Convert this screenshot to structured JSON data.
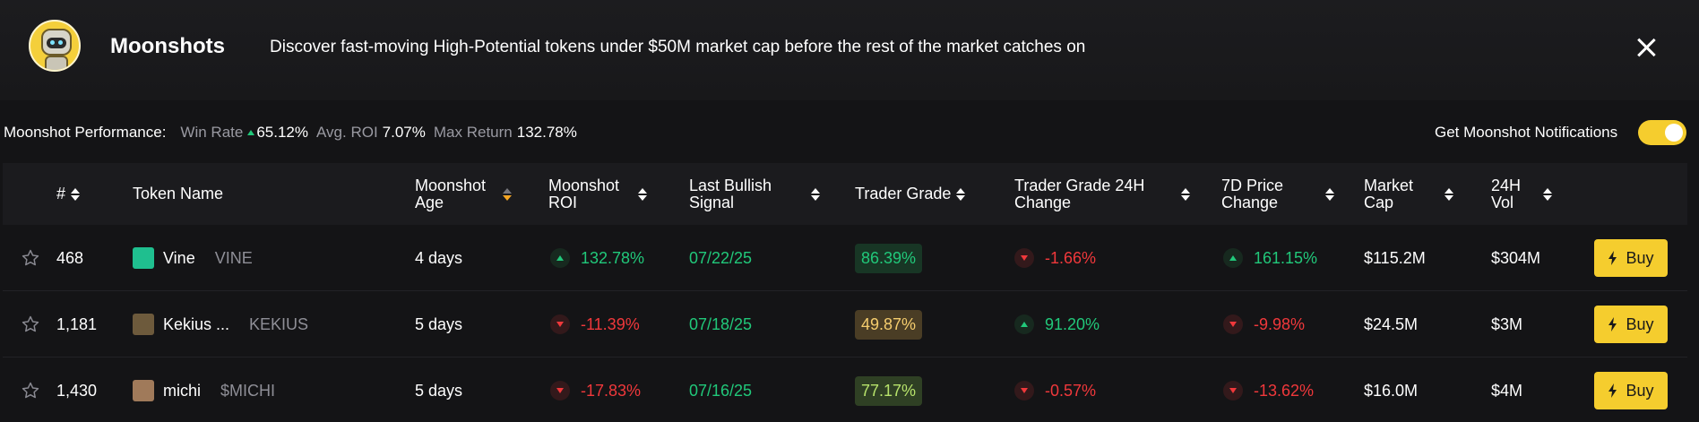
{
  "banner": {
    "title": "Moonshots",
    "tagline": "Discover fast-moving High-Potential tokens under $50M market cap before the rest of the market catches on"
  },
  "performance": {
    "label": "Moonshot Performance:",
    "win_rate_label": "Win Rate",
    "win_rate_value": "65.12%",
    "avg_roi_label": "Avg. ROI",
    "avg_roi_value": "7.07%",
    "max_return_label": "Max Return",
    "max_return_value": "132.78%"
  },
  "notifications": {
    "label": "Get Moonshot Notifications",
    "enabled": true
  },
  "table": {
    "headers": {
      "rank": "#",
      "token": "Token Name",
      "age": "Moonshot Age",
      "roi": "Moonshot ROI",
      "signal": "Last Bullish Signal",
      "grade": "Trader Grade",
      "grade_change": "Trader Grade 24H Change",
      "price_change": "7D Price Change",
      "mcap": "Market Cap",
      "vol": "24H Vol"
    },
    "buy_label": "Buy",
    "rows": [
      {
        "rank": "468",
        "name": "Vine",
        "symbol": "VINE",
        "age": "4 days",
        "roi": "132.78%",
        "roi_dir": "up",
        "signal": "07/22/25",
        "grade": "86.39%",
        "grade_tone": "green",
        "grade_change": "-1.66%",
        "grade_change_dir": "down",
        "price_change": "161.15%",
        "price_dir": "up",
        "mcap": "$115.2M",
        "vol": "$304M"
      },
      {
        "rank": "1,181",
        "name": "Kekius ...",
        "symbol": "KEKIUS",
        "age": "5 days",
        "roi": "-11.39%",
        "roi_dir": "down",
        "signal": "07/18/25",
        "grade": "49.87%",
        "grade_tone": "yellow",
        "grade_change": "91.20%",
        "grade_change_dir": "up",
        "price_change": "-9.98%",
        "price_dir": "down",
        "mcap": "$24.5M",
        "vol": "$3M"
      },
      {
        "rank": "1,430",
        "name": "michi",
        "symbol": "$MICHI",
        "age": "5 days",
        "roi": "-17.83%",
        "roi_dir": "down",
        "signal": "07/16/25",
        "grade": "77.17%",
        "grade_tone": "lime",
        "grade_change": "-0.57%",
        "grade_change_dir": "down",
        "price_change": "-13.62%",
        "price_dir": "down",
        "mcap": "$16.0M",
        "vol": "$4M"
      }
    ]
  },
  "colors": {
    "accent": "#f5cd2e",
    "positive": "#21c87a",
    "negative": "#f0383b",
    "grade_green_bg": "#183625",
    "grade_green_fg": "#21c87a",
    "grade_yellow_bg": "#4a3d25",
    "grade_yellow_fg": "#f5cd6e",
    "grade_lime_bg": "#2f4024",
    "grade_lime_fg": "#b7e36b"
  },
  "icons": {
    "close": "close-icon",
    "star": "star-icon",
    "bolt": "bolt-icon",
    "sort": "sort-icon"
  }
}
